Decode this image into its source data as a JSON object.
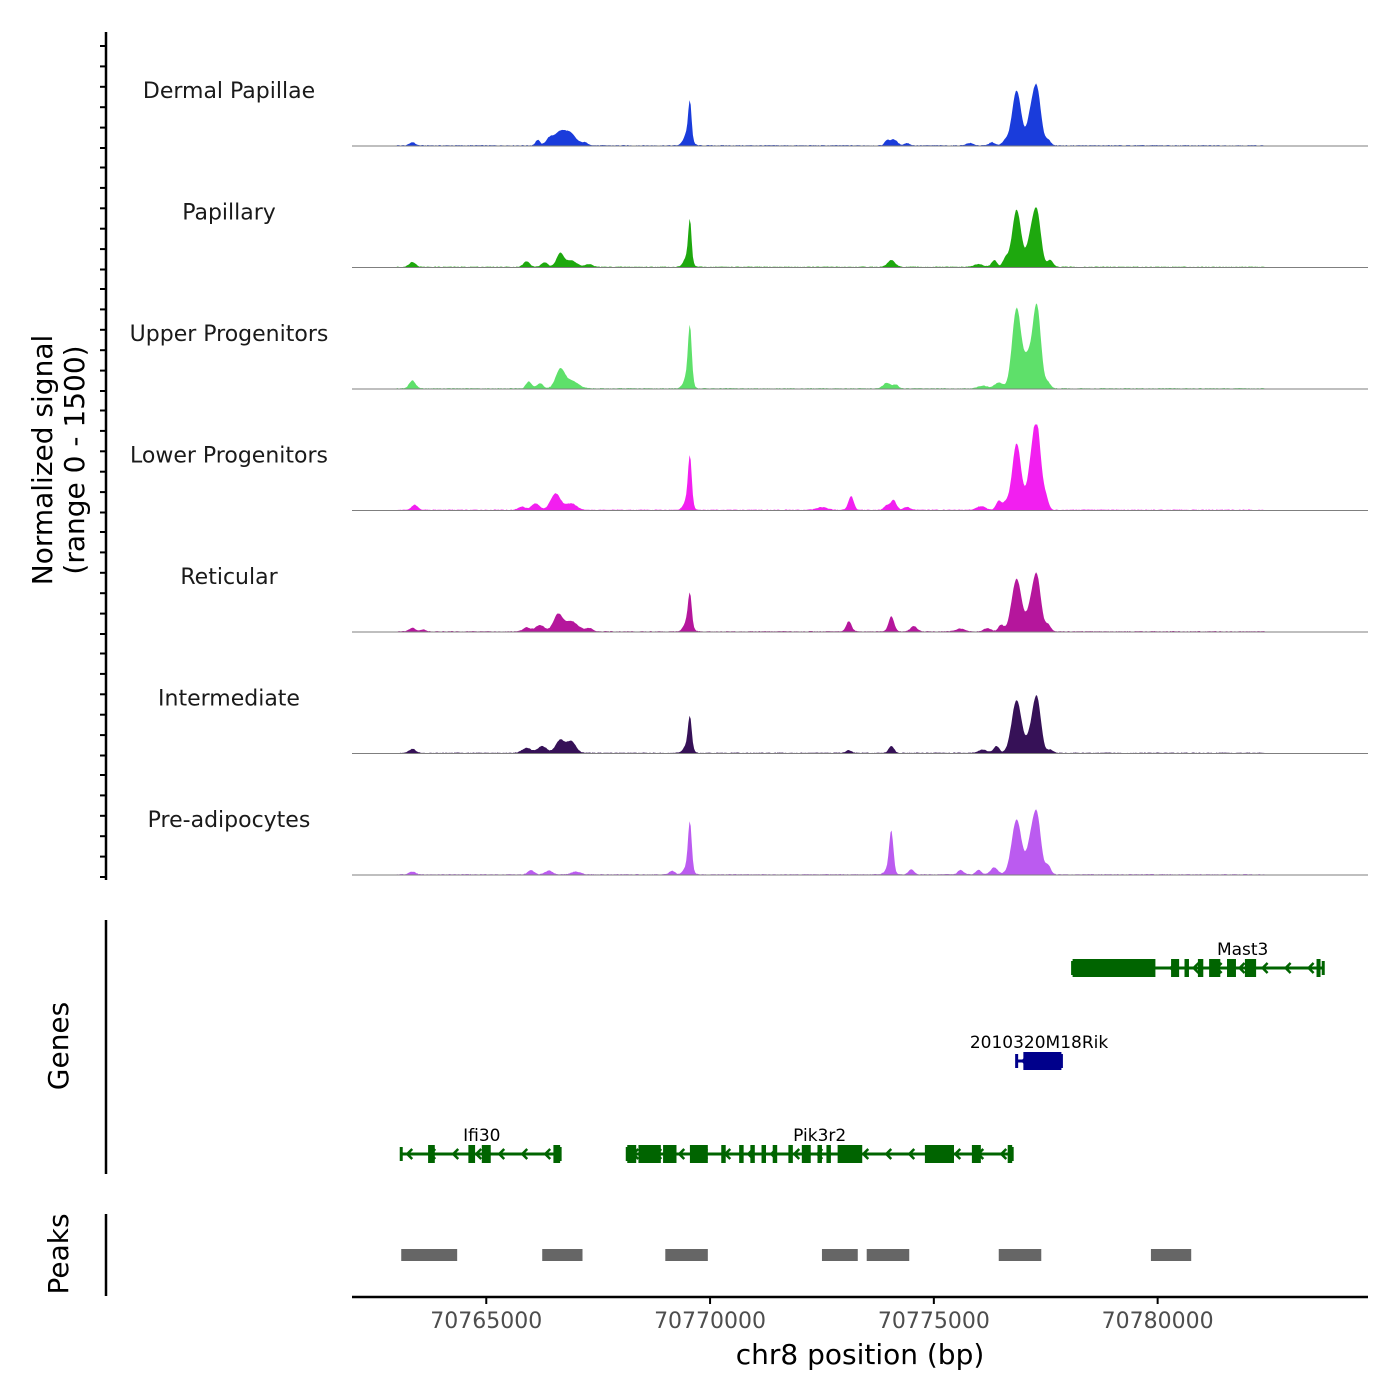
{
  "chart_data": {
    "type": "area",
    "title": "",
    "chromosome": "chr8",
    "xlabel": "chr8 position (bp)",
    "xlim": [
      70762000,
      70784700
    ],
    "x_ticks": [
      70765000,
      70770000,
      70775000,
      70780000
    ],
    "x_tick_labels": [
      "70765000",
      "70770000",
      "70775000",
      "70780000"
    ],
    "coverage_ylabel": [
      "Normalized signal",
      "(range 0 - 1500)"
    ],
    "coverage_ylim": [
      0,
      1500
    ],
    "genes_label": "Genes",
    "peaks_label": "Peaks",
    "series": [
      {
        "name": "Dermal Papillae",
        "color": "#1a3cdb",
        "peaks": [
          [
            70763350,
            60,
            70
          ],
          [
            70766150,
            50,
            120
          ],
          [
            70766400,
            70,
            110
          ],
          [
            70766650,
            150,
            300
          ],
          [
            70766900,
            120,
            200
          ],
          [
            70767200,
            80,
            60
          ],
          [
            70769550,
            35,
            750
          ],
          [
            70769500,
            80,
            300
          ],
          [
            70773950,
            50,
            100
          ],
          [
            70774100,
            80,
            130
          ],
          [
            70774400,
            60,
            50
          ],
          [
            70775800,
            80,
            50
          ],
          [
            70776300,
            60,
            70
          ],
          [
            70776600,
            70,
            100
          ],
          [
            70776850,
            100,
            1200
          ],
          [
            70777150,
            80,
            500
          ],
          [
            70777300,
            90,
            1240
          ],
          [
            70777550,
            60,
            120
          ]
        ]
      },
      {
        "name": "Papillary",
        "color": "#1ea80e",
        "peaks": [
          [
            70763350,
            70,
            110
          ],
          [
            70765900,
            70,
            120
          ],
          [
            70766300,
            70,
            100
          ],
          [
            70766650,
            80,
            300
          ],
          [
            70766900,
            120,
            140
          ],
          [
            70767300,
            80,
            60
          ],
          [
            70769550,
            35,
            850
          ],
          [
            70769500,
            80,
            250
          ],
          [
            70774050,
            80,
            150
          ],
          [
            70776000,
            100,
            60
          ],
          [
            70776350,
            60,
            150
          ],
          [
            70776600,
            60,
            180
          ],
          [
            70776850,
            100,
            1250
          ],
          [
            70777150,
            80,
            500
          ],
          [
            70777300,
            90,
            1200
          ],
          [
            70777600,
            60,
            150
          ]
        ]
      },
      {
        "name": "Upper Progenitors",
        "color": "#5ee06a",
        "peaks": [
          [
            70763350,
            70,
            170
          ],
          [
            70765950,
            60,
            150
          ],
          [
            70766200,
            70,
            110
          ],
          [
            70766650,
            100,
            400
          ],
          [
            70766900,
            150,
            160
          ],
          [
            70769550,
            40,
            1150
          ],
          [
            70769500,
            80,
            300
          ],
          [
            70773950,
            80,
            120
          ],
          [
            70774150,
            60,
            80
          ],
          [
            70776100,
            100,
            60
          ],
          [
            70776450,
            90,
            130
          ],
          [
            70776850,
            100,
            1750
          ],
          [
            70777100,
            90,
            600
          ],
          [
            70777300,
            90,
            1800
          ],
          [
            70777550,
            60,
            120
          ]
        ]
      },
      {
        "name": "Lower Progenitors",
        "color": "#f21ff0",
        "peaks": [
          [
            70763400,
            70,
            110
          ],
          [
            70765800,
            80,
            70
          ],
          [
            70766100,
            90,
            140
          ],
          [
            70766550,
            110,
            360
          ],
          [
            70766900,
            120,
            140
          ],
          [
            70769550,
            40,
            1000
          ],
          [
            70769500,
            80,
            250
          ],
          [
            70772500,
            120,
            60
          ],
          [
            70773150,
            60,
            300
          ],
          [
            70773950,
            60,
            100
          ],
          [
            70774100,
            60,
            220
          ],
          [
            70774400,
            80,
            60
          ],
          [
            70776050,
            100,
            80
          ],
          [
            70776450,
            60,
            200
          ],
          [
            70776600,
            60,
            140
          ],
          [
            70776850,
            100,
            1450
          ],
          [
            70777150,
            80,
            650
          ],
          [
            70777300,
            90,
            1850
          ],
          [
            70777500,
            60,
            250
          ]
        ]
      },
      {
        "name": "Reticular",
        "color": "#b5169c",
        "peaks": [
          [
            70763350,
            70,
            80
          ],
          [
            70763600,
            60,
            40
          ],
          [
            70765900,
            80,
            90
          ],
          [
            70766200,
            100,
            140
          ],
          [
            70766600,
            100,
            360
          ],
          [
            70766900,
            150,
            220
          ],
          [
            70767300,
            80,
            70
          ],
          [
            70769550,
            40,
            650
          ],
          [
            70769500,
            80,
            250
          ],
          [
            70773100,
            60,
            220
          ],
          [
            70774050,
            60,
            330
          ],
          [
            70774550,
            70,
            120
          ],
          [
            70775600,
            100,
            60
          ],
          [
            70776200,
            80,
            70
          ],
          [
            70776500,
            60,
            140
          ],
          [
            70776850,
            110,
            1150
          ],
          [
            70777150,
            80,
            400
          ],
          [
            70777300,
            90,
            1200
          ],
          [
            70777550,
            60,
            150
          ]
        ]
      },
      {
        "name": "Intermediate",
        "color": "#361157",
        "peaks": [
          [
            70763350,
            70,
            90
          ],
          [
            70765900,
            100,
            110
          ],
          [
            70766250,
            100,
            150
          ],
          [
            70766650,
            100,
            280
          ],
          [
            70766900,
            100,
            250
          ],
          [
            70769550,
            40,
            650
          ],
          [
            70769500,
            80,
            200
          ],
          [
            70773100,
            60,
            60
          ],
          [
            70774050,
            60,
            150
          ],
          [
            70776100,
            100,
            70
          ],
          [
            70776400,
            60,
            150
          ],
          [
            70776850,
            110,
            1150
          ],
          [
            70777150,
            80,
            300
          ],
          [
            70777300,
            90,
            1200
          ],
          [
            70777600,
            60,
            70
          ]
        ]
      },
      {
        "name": "Pre-adipocytes",
        "color": "#bb5bf0",
        "peaks": [
          [
            70763350,
            70,
            60
          ],
          [
            70766000,
            70,
            90
          ],
          [
            70766400,
            80,
            80
          ],
          [
            70767000,
            100,
            60
          ],
          [
            70769150,
            60,
            80
          ],
          [
            70769550,
            40,
            1000
          ],
          [
            70769500,
            80,
            200
          ],
          [
            70774050,
            45,
            850
          ],
          [
            70774000,
            80,
            150
          ],
          [
            70774500,
            60,
            110
          ],
          [
            70775600,
            60,
            100
          ],
          [
            70776000,
            60,
            100
          ],
          [
            70776350,
            80,
            150
          ],
          [
            70776850,
            110,
            1200
          ],
          [
            70777150,
            80,
            550
          ],
          [
            70777300,
            90,
            1300
          ],
          [
            70777550,
            60,
            200
          ]
        ]
      }
    ],
    "genes": [
      {
        "name": "Mast3",
        "color": "#006400",
        "strand": "-",
        "row": 1,
        "start": 70778100,
        "end": 70783700,
        "exons": [
          [
            70778100,
            70779950
          ],
          [
            70780300,
            70780480
          ],
          [
            70780600,
            70780700
          ],
          [
            70780900,
            70781020
          ],
          [
            70781150,
            70781400
          ],
          [
            70781550,
            70781750
          ],
          [
            70781950,
            70782200
          ],
          [
            70783550,
            70783620
          ]
        ]
      },
      {
        "name": "2010320M18Rik",
        "color": "#00008b",
        "strand": "-",
        "row": 2,
        "start": 70776850,
        "end": 70777850,
        "exons": [
          [
            70777000,
            70777850
          ]
        ]
      },
      {
        "name": "Ifi30",
        "color": "#006400",
        "strand": "-",
        "row": 3,
        "start": 70763100,
        "end": 70766650,
        "exons": [
          [
            70763700,
            70763850
          ],
          [
            70764600,
            70764750
          ],
          [
            70764900,
            70765100
          ],
          [
            70766500,
            70766650
          ]
        ]
      },
      {
        "name": "Pik3r2",
        "color": "#006400",
        "strand": "-",
        "row": 3,
        "start": 70768150,
        "end": 70776750,
        "exons": [
          [
            70768150,
            70768350
          ],
          [
            70768400,
            70768900
          ],
          [
            70768950,
            70769250
          ],
          [
            70769550,
            70769950
          ],
          [
            70770250,
            70770350
          ],
          [
            70770650,
            70770750
          ],
          [
            70770900,
            70771000
          ],
          [
            70771150,
            70771250
          ],
          [
            70771400,
            70771500
          ],
          [
            70771750,
            70771850
          ],
          [
            70772050,
            70772250
          ],
          [
            70772400,
            70772500
          ],
          [
            70772600,
            70772700
          ],
          [
            70772850,
            70773400
          ],
          [
            70774800,
            70775450
          ],
          [
            70775850,
            70776050
          ],
          [
            70776650,
            70776750
          ]
        ]
      }
    ],
    "peak_regions": [
      [
        70763100,
        70764350
      ],
      [
        70766250,
        70767150
      ],
      [
        70769000,
        70769950
      ],
      [
        70772500,
        70773300
      ],
      [
        70773500,
        70774450
      ],
      [
        70776450,
        70777400
      ],
      [
        70779850,
        70780750
      ]
    ]
  }
}
